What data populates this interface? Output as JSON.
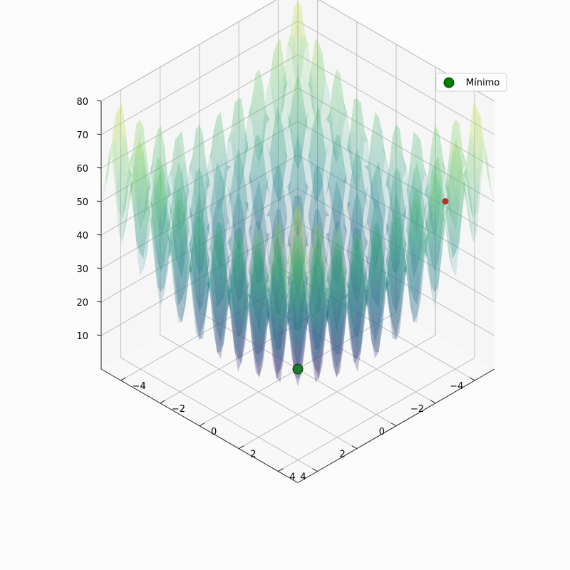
{
  "chart_data": {
    "type": "surface3d",
    "function": "rastrigin",
    "title": "",
    "xlabel": "",
    "ylabel": "",
    "zlabel": "",
    "xlim": [
      -5,
      5
    ],
    "ylim": [
      -5,
      5
    ],
    "zlim": [
      0,
      80
    ],
    "x_ticks": [
      "−4",
      "−2",
      "0",
      "2",
      "4"
    ],
    "y_ticks": [
      "−4",
      "−2",
      "0",
      "2",
      "4"
    ],
    "z_ticks": [
      "10",
      "20",
      "30",
      "40",
      "50",
      "60",
      "70",
      "80"
    ],
    "grid": true,
    "colormap": "viridis",
    "surface_alpha": 0.25,
    "points": [
      {
        "name": "Mínimo",
        "x": 0,
        "y": 0,
        "z": 0,
        "color": "#1a7a2e",
        "in_legend": true
      },
      {
        "name": "",
        "x": -4.5,
        "y": 3.0,
        "z": 45,
        "color": "#b5302a",
        "in_legend": false
      }
    ],
    "legend": {
      "placement": "top-right",
      "entries": [
        "Mínimo"
      ],
      "marker_color": "#008000"
    }
  }
}
